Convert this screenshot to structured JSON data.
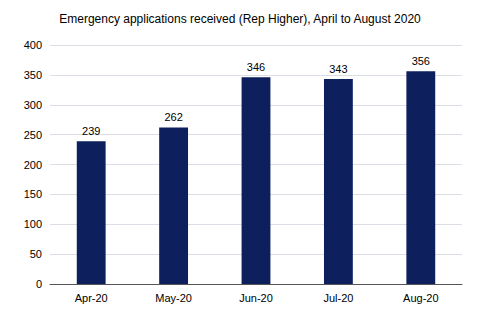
{
  "chart_data": {
    "type": "bar",
    "title": "Emergency applications received (Rep Higher), April to August 2020",
    "categories": [
      "Apr-20",
      "May-20",
      "Jun-20",
      "Jul-20",
      "Aug-20"
    ],
    "values": [
      239,
      262,
      346,
      343,
      356
    ],
    "color": "#0d1f5c",
    "ylim": [
      0,
      400
    ],
    "yticks": [
      0,
      50,
      100,
      150,
      200,
      250,
      300,
      350,
      400
    ],
    "grid": true,
    "data_labels": true
  }
}
